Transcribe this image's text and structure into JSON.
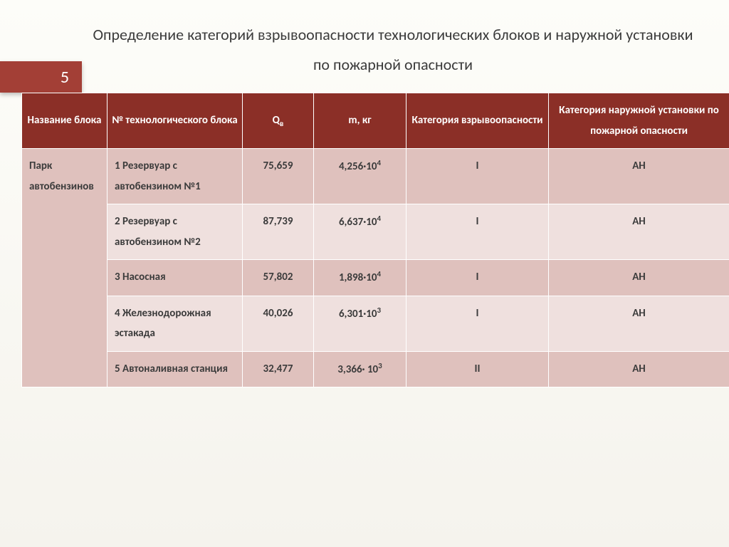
{
  "slide": {
    "number": "5",
    "title": "Определение категорий взрывоопасности технологических блоков и наружной установки по пожарной опасности"
  },
  "table": {
    "headers": {
      "name": "Название блока",
      "block_no": "№ технологического блока",
      "q": "Q",
      "q_sub": "в",
      "m": "m, кг",
      "explosion_cat": "Категория взрывоопасности",
      "fire_cat": "Категория наружной установки по пожарной опасности"
    },
    "group_name": "Парк автобензинов",
    "rows": [
      {
        "block": "1 Резервуар с автобензином №1",
        "q": "75,659",
        "m_base": "4,256·10",
        "m_exp": "4",
        "exp_cat": "I",
        "fire_cat": "АН"
      },
      {
        "block": "2 Резервуар с автобензином №2",
        "q": "87,739",
        "m_base": "6,637·10",
        "m_exp": "4",
        "exp_cat": "I",
        "fire_cat": "АН"
      },
      {
        "block": "3 Насосная",
        "q": "57,802",
        "m_base": "1,898·10",
        "m_exp": "4",
        "exp_cat": "I",
        "fire_cat": "АН"
      },
      {
        "block": "4 Железнодорожная эстакада",
        "q": "40,026",
        "m_base": "6,301·10",
        "m_exp": "3",
        "exp_cat": "I",
        "fire_cat": "АН"
      },
      {
        "block": "5 Автоналивная станция",
        "q": "32,477",
        "m_base": "3,366· 10",
        "m_exp": "3",
        "exp_cat": "II",
        "fire_cat": "АН"
      }
    ]
  },
  "style": {
    "header_bg": "#8b2f27",
    "tab_bg": "#a33f36",
    "row_odd_bg": "#dfc1bd",
    "row_even_bg": "#efe0de"
  }
}
